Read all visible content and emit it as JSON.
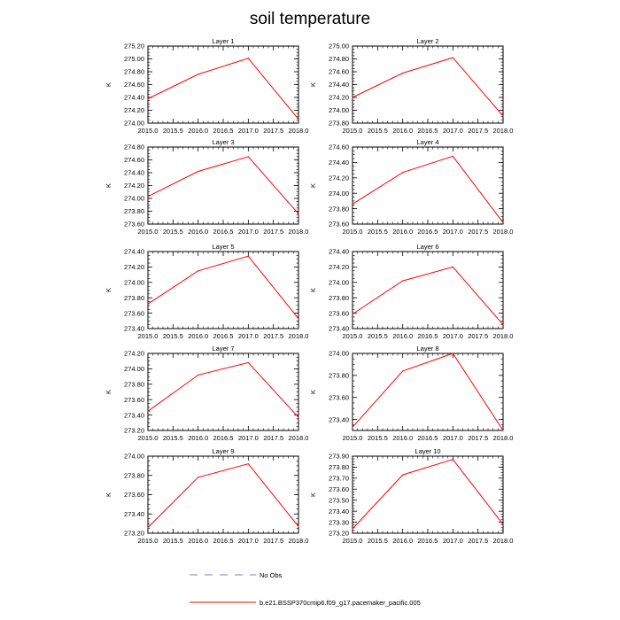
{
  "title": "soil temperature",
  "colors": {
    "model_line": "#ff0000",
    "obs_line": "#7b7bd6",
    "axis": "#000000"
  },
  "legend": {
    "obs_label": "No Obs",
    "model_label": "b.e21.BSSP370cmip6.f09_g17.pacemaker_pacific.005"
  },
  "chart_data": [
    {
      "type": "line",
      "title": "Layer 1",
      "ylabel": "K",
      "xticks": [
        "2015.0",
        "2015.5",
        "2016.0",
        "2016.5",
        "2017.0",
        "2017.5",
        "2018.0"
      ],
      "xlim": [
        2015.0,
        2018.0
      ],
      "yticks": [
        "274.00",
        "274.20",
        "274.40",
        "274.60",
        "274.80",
        "275.00",
        "275.20"
      ],
      "ylim": [
        274.0,
        275.2
      ],
      "x": [
        2015.0,
        2016.0,
        2017.0,
        2018.0
      ],
      "y": [
        274.38,
        274.76,
        275.01,
        274.06
      ]
    },
    {
      "type": "line",
      "title": "Layer 2",
      "ylabel": "K",
      "xticks": [
        "2015.0",
        "2015.5",
        "2016.0",
        "2016.5",
        "2017.0",
        "2017.5",
        "2018.0"
      ],
      "xlim": [
        2015.0,
        2018.0
      ],
      "yticks": [
        "273.80",
        "274.00",
        "274.20",
        "274.40",
        "274.60",
        "274.80",
        "275.00"
      ],
      "ylim": [
        273.8,
        275.0
      ],
      "x": [
        2015.0,
        2016.0,
        2017.0,
        2018.0
      ],
      "y": [
        274.2,
        274.58,
        274.82,
        273.91
      ]
    },
    {
      "type": "line",
      "title": "Layer 3",
      "ylabel": "K",
      "xticks": [
        "2015.0",
        "2015.5",
        "2016.0",
        "2016.5",
        "2017.0",
        "2017.5",
        "2018.0"
      ],
      "xlim": [
        2015.0,
        2018.0
      ],
      "yticks": [
        "273.60",
        "273.80",
        "274.00",
        "274.20",
        "274.40",
        "274.60",
        "274.80"
      ],
      "ylim": [
        273.6,
        274.8
      ],
      "x": [
        2015.0,
        2016.0,
        2017.0,
        2018.0
      ],
      "y": [
        274.03,
        274.42,
        274.65,
        273.76
      ]
    },
    {
      "type": "line",
      "title": "Layer 4",
      "ylabel": "K",
      "xticks": [
        "2015.0",
        "2015.5",
        "2016.0",
        "2016.5",
        "2017.0",
        "2017.5",
        "2018.0"
      ],
      "xlim": [
        2015.0,
        2018.0
      ],
      "yticks": [
        "273.60",
        "273.80",
        "274.00",
        "274.20",
        "274.40",
        "274.60"
      ],
      "ylim": [
        273.6,
        274.6
      ],
      "x": [
        2015.0,
        2016.0,
        2017.0,
        2018.0
      ],
      "y": [
        273.86,
        274.27,
        274.48,
        273.62
      ]
    },
    {
      "type": "line",
      "title": "Layer 5",
      "ylabel": "K",
      "xticks": [
        "2015.0",
        "2015.5",
        "2016.0",
        "2016.5",
        "2017.0",
        "2017.5",
        "2018.0"
      ],
      "xlim": [
        2015.0,
        2018.0
      ],
      "yticks": [
        "273.40",
        "273.60",
        "273.80",
        "274.00",
        "274.20",
        "274.40"
      ],
      "ylim": [
        273.4,
        274.4
      ],
      "x": [
        2015.0,
        2016.0,
        2017.0,
        2018.0
      ],
      "y": [
        273.72,
        274.15,
        274.34,
        273.53
      ]
    },
    {
      "type": "line",
      "title": "Layer 6",
      "ylabel": "K",
      "xticks": [
        "2015.0",
        "2015.5",
        "2016.0",
        "2016.5",
        "2017.0",
        "2017.5",
        "2018.0"
      ],
      "xlim": [
        2015.0,
        2018.0
      ],
      "yticks": [
        "273.40",
        "273.60",
        "273.80",
        "274.00",
        "274.20",
        "274.40"
      ],
      "ylim": [
        273.4,
        274.4
      ],
      "x": [
        2015.0,
        2016.0,
        2017.0,
        2018.0
      ],
      "y": [
        273.59,
        274.02,
        274.2,
        273.45
      ]
    },
    {
      "type": "line",
      "title": "Layer 7",
      "ylabel": "K",
      "xticks": [
        "2015.0",
        "2015.5",
        "2016.0",
        "2016.5",
        "2017.0",
        "2017.5",
        "2018.0"
      ],
      "xlim": [
        2015.0,
        2018.0
      ],
      "yticks": [
        "273.20",
        "273.40",
        "273.60",
        "273.80",
        "274.00",
        "274.20"
      ],
      "ylim": [
        273.2,
        274.2
      ],
      "x": [
        2015.0,
        2016.0,
        2017.0,
        2018.0
      ],
      "y": [
        273.45,
        273.92,
        274.08,
        273.37
      ]
    },
    {
      "type": "line",
      "title": "Layer 8",
      "ylabel": "K",
      "xticks": [
        "2015.0",
        "2015.5",
        "2016.0",
        "2016.5",
        "2017.0",
        "2017.5",
        "2018.0"
      ],
      "xlim": [
        2015.0,
        2018.0
      ],
      "yticks": [
        "273.40",
        "273.60",
        "273.80",
        "274.00"
      ],
      "ylim": [
        273.3,
        274.0
      ],
      "x": [
        2015.0,
        2016.0,
        2017.0,
        2018.0
      ],
      "y": [
        273.33,
        273.84,
        274.0,
        273.3
      ]
    },
    {
      "type": "line",
      "title": "Layer 9",
      "ylabel": "K",
      "xticks": [
        "2015.0",
        "2015.5",
        "2016.0",
        "2016.5",
        "2017.0",
        "2017.5",
        "2018.0"
      ],
      "xlim": [
        2015.0,
        2018.0
      ],
      "yticks": [
        "273.20",
        "273.40",
        "273.60",
        "273.80",
        "274.00"
      ],
      "ylim": [
        273.2,
        274.0
      ],
      "x": [
        2015.0,
        2016.0,
        2017.0,
        2018.0
      ],
      "y": [
        273.26,
        273.78,
        273.92,
        273.27
      ]
    },
    {
      "type": "line",
      "title": "Layer 10",
      "ylabel": "K",
      "xticks": [
        "2015.0",
        "2015.5",
        "2016.0",
        "2016.5",
        "2017.0",
        "2017.5",
        "2018.0"
      ],
      "xlim": [
        2015.0,
        2018.0
      ],
      "yticks": [
        "273.20",
        "273.30",
        "273.40",
        "273.50",
        "273.60",
        "273.70",
        "273.80",
        "273.90"
      ],
      "ylim": [
        273.2,
        273.9
      ],
      "x": [
        2015.0,
        2016.0,
        2017.0,
        2018.0
      ],
      "y": [
        273.24,
        273.73,
        273.87,
        273.28
      ]
    }
  ]
}
